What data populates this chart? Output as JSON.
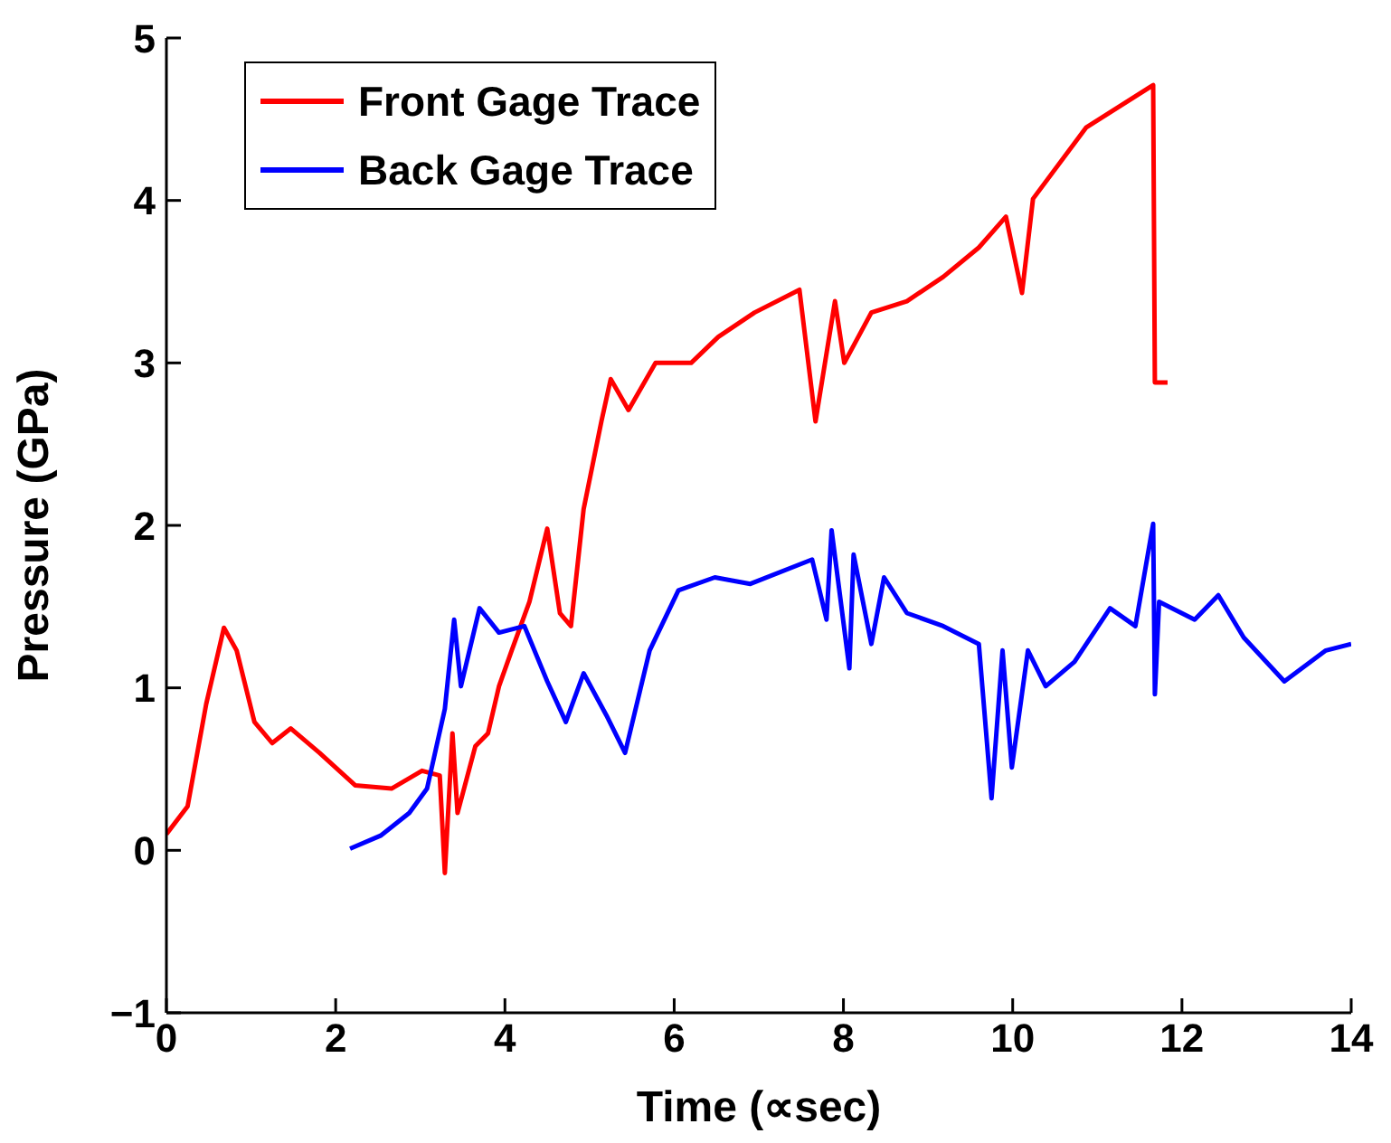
{
  "chart_data": {
    "type": "line",
    "xlabel": "Time (∝sec)",
    "ylabel": "Pressure (GPa)",
    "xlim": [
      0,
      14
    ],
    "ylim": [
      -1,
      5
    ],
    "xticks": [
      0,
      2,
      4,
      6,
      8,
      10,
      12,
      14
    ],
    "yticks": [
      -1,
      0,
      1,
      2,
      3,
      4,
      5
    ],
    "legend": "top left",
    "series": [
      {
        "name": "Front Gage Trace",
        "color": "#ff0000",
        "x": [
          0,
          0.25,
          0.47,
          0.68,
          0.83,
          1.04,
          1.25,
          1.47,
          1.81,
          2.23,
          2.66,
          3.02,
          3.23,
          3.29,
          3.38,
          3.44,
          3.65,
          3.8,
          3.93,
          4.08,
          4.29,
          4.5,
          4.65,
          4.78,
          4.93,
          5.14,
          5.25,
          5.46,
          5.78,
          6.2,
          6.52,
          6.95,
          7.48,
          7.67,
          7.9,
          8.01,
          8.33,
          8.75,
          9.18,
          9.6,
          9.92,
          10.11,
          10.24,
          10.87,
          11.66,
          11.68,
          11.83
        ],
        "values": [
          0.1,
          0.27,
          0.9,
          1.37,
          1.23,
          0.79,
          0.66,
          0.75,
          0.6,
          0.4,
          0.38,
          0.49,
          0.46,
          -0.14,
          0.72,
          0.23,
          0.64,
          0.72,
          1.01,
          1.23,
          1.53,
          1.98,
          1.46,
          1.38,
          2.1,
          2.64,
          2.9,
          2.71,
          3.0,
          3.0,
          3.16,
          3.31,
          3.45,
          2.64,
          3.38,
          3.0,
          3.31,
          3.38,
          3.53,
          3.71,
          3.9,
          3.43,
          4.01,
          4.45,
          4.71,
          2.88,
          2.88
        ]
      },
      {
        "name": "Back Gage Trace",
        "color": "#0000ff",
        "x": [
          2.17,
          2.53,
          2.87,
          3.08,
          3.29,
          3.4,
          3.48,
          3.7,
          3.93,
          4.23,
          4.5,
          4.72,
          4.93,
          5.2,
          5.42,
          5.71,
          6.05,
          6.48,
          6.9,
          7.63,
          7.8,
          7.86,
          8.07,
          8.12,
          8.33,
          8.48,
          8.75,
          9.18,
          9.6,
          9.75,
          9.88,
          9.99,
          10.18,
          10.39,
          10.73,
          11.15,
          11.45,
          11.66,
          11.68,
          11.73,
          12.15,
          12.43,
          12.73,
          13.21,
          13.7,
          14.0
        ],
        "values": [
          0.01,
          0.09,
          0.23,
          0.38,
          0.87,
          1.42,
          1.01,
          1.49,
          1.34,
          1.38,
          1.04,
          0.79,
          1.09,
          0.83,
          0.6,
          1.23,
          1.6,
          1.68,
          1.64,
          1.79,
          1.42,
          1.97,
          1.12,
          1.82,
          1.27,
          1.68,
          1.46,
          1.38,
          1.27,
          0.32,
          1.23,
          0.51,
          1.23,
          1.01,
          1.16,
          1.49,
          1.38,
          2.01,
          0.96,
          1.53,
          1.42,
          1.57,
          1.31,
          1.04,
          1.23,
          1.27
        ]
      }
    ]
  }
}
